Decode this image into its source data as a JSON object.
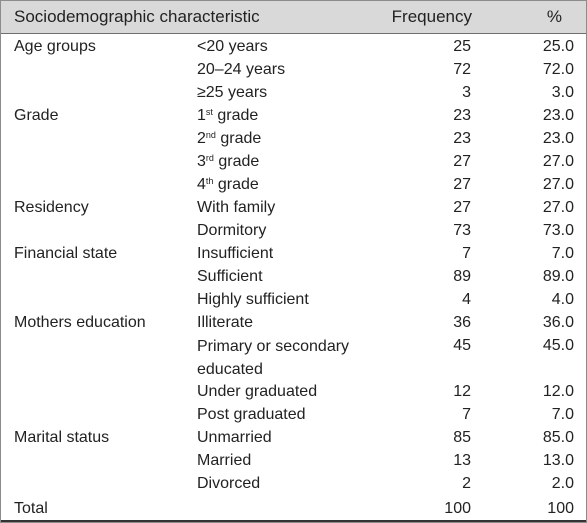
{
  "headers": {
    "characteristic": "Sociodemographic characteristic",
    "frequency": "Frequency",
    "percent": "%"
  },
  "groups": [
    {
      "category": "Age groups",
      "rows": [
        {
          "label": "<20 years",
          "frequency": "25",
          "percent": "25.0"
        },
        {
          "label": "20–24 years",
          "frequency": "72",
          "percent": "72.0"
        },
        {
          "label": "≥25 years",
          "frequency": "3",
          "percent": "3.0"
        }
      ]
    },
    {
      "category": "Grade",
      "rows": [
        {
          "label_prefix": "1",
          "label_sup": "st",
          "label_suffix": " grade",
          "frequency": "23",
          "percent": "23.0"
        },
        {
          "label_prefix": "2",
          "label_sup": "nd",
          "label_suffix": " grade",
          "frequency": "23",
          "percent": "23.0"
        },
        {
          "label_prefix": "3",
          "label_sup": "rd",
          "label_suffix": " grade",
          "frequency": "27",
          "percent": "27.0"
        },
        {
          "label_prefix": "4",
          "label_sup": "th",
          "label_suffix": " grade",
          "frequency": "27",
          "percent": "27.0"
        }
      ]
    },
    {
      "category": "Residency",
      "rows": [
        {
          "label": "With family",
          "frequency": "27",
          "percent": "27.0"
        },
        {
          "label": "Dormitory",
          "frequency": "73",
          "percent": "73.0"
        }
      ]
    },
    {
      "category": "Financial state",
      "rows": [
        {
          "label": "Insufficient",
          "frequency": "7",
          "percent": "7.0"
        },
        {
          "label": "Sufficient",
          "frequency": "89",
          "percent": "89.0"
        },
        {
          "label": "Highly sufficient",
          "frequency": "4",
          "percent": "4.0"
        }
      ]
    },
    {
      "category": "Mothers education",
      "rows": [
        {
          "label": "Illiterate",
          "frequency": "36",
          "percent": "36.0"
        },
        {
          "label_line1": "Primary or secondary",
          "label_line2": "educated",
          "frequency": "45",
          "percent": "45.0"
        },
        {
          "label": "Under graduated",
          "frequency": "12",
          "percent": "12.0"
        },
        {
          "label": "Post graduated",
          "frequency": "7",
          "percent": "7.0"
        }
      ]
    },
    {
      "category": "Marital status",
      "rows": [
        {
          "label": "Unmarried",
          "frequency": "85",
          "percent": "85.0"
        },
        {
          "label": "Married",
          "frequency": "13",
          "percent": "13.0"
        },
        {
          "label": "Divorced",
          "frequency": "2",
          "percent": "2.0"
        }
      ]
    }
  ],
  "total": {
    "label": "Total",
    "frequency": "100",
    "percent": "100"
  }
}
